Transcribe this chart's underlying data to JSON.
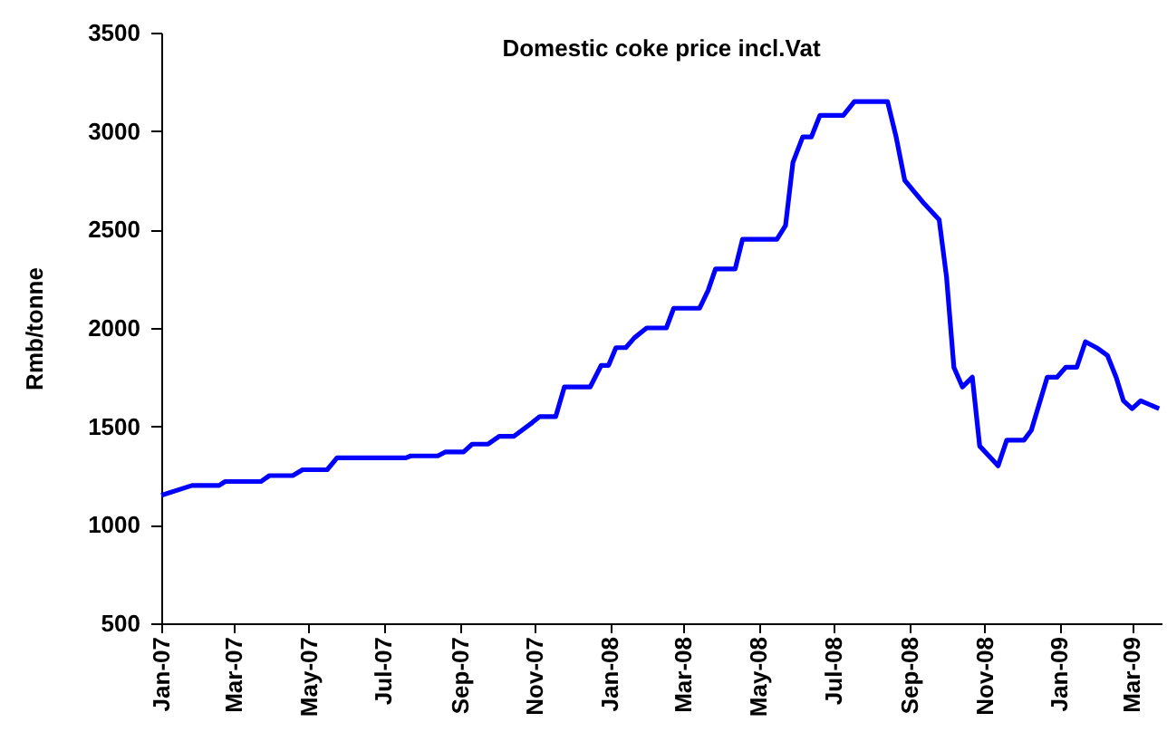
{
  "chart_data": {
    "type": "line",
    "title": "Domestic coke price incl.Vat",
    "ylabel": "Rmb/tonne",
    "x": [
      "2007-01-01",
      "2007-01-26",
      "2007-02-17",
      "2007-02-22",
      "2007-03-23",
      "2007-03-30",
      "2007-04-18",
      "2007-04-26",
      "2007-05-16",
      "2007-05-24",
      "2007-07-19",
      "2007-07-23",
      "2007-08-14",
      "2007-08-20",
      "2007-09-04",
      "2007-09-11",
      "2007-09-24",
      "2007-10-03",
      "2007-10-15",
      "2007-10-30",
      "2007-11-05",
      "2007-11-18",
      "2007-11-25",
      "2007-12-16",
      "2007-12-25",
      "2007-12-31",
      "2008-01-06",
      "2008-01-14",
      "2008-01-21",
      "2008-01-31",
      "2008-02-16",
      "2008-02-22",
      "2008-03-14",
      "2008-03-21",
      "2008-03-27",
      "2008-04-12",
      "2008-04-18",
      "2008-05-16",
      "2008-05-23",
      "2008-05-29",
      "2008-06-06",
      "2008-06-13",
      "2008-06-20",
      "2008-07-09",
      "2008-07-18",
      "2008-08-14",
      "2008-08-21",
      "2008-08-28",
      "2008-09-05",
      "2008-09-13",
      "2008-09-25",
      "2008-10-01",
      "2008-10-07",
      "2008-10-14",
      "2008-10-22",
      "2008-10-28",
      "2008-11-12",
      "2008-11-19",
      "2008-12-03",
      "2008-12-09",
      "2008-12-22",
      "2008-12-30",
      "2009-01-06",
      "2009-01-15",
      "2009-01-22",
      "2009-01-31",
      "2009-02-09",
      "2009-02-16",
      "2009-02-22",
      "2009-03-01",
      "2009-03-08",
      "2009-03-23"
    ],
    "series": [
      {
        "color": "#0000ff",
        "values": [
          1150,
          1200,
          1200,
          1220,
          1220,
          1250,
          1250,
          1280,
          1280,
          1340,
          1340,
          1350,
          1350,
          1370,
          1370,
          1410,
          1410,
          1450,
          1450,
          1520,
          1550,
          1550,
          1700,
          1700,
          1810,
          1810,
          1900,
          1900,
          1950,
          2000,
          2000,
          2100,
          2100,
          2190,
          2300,
          2300,
          2450,
          2450,
          2520,
          2840,
          2970,
          2970,
          3080,
          3080,
          3150,
          3150,
          2970,
          2750,
          2690,
          2630,
          2550,
          2260,
          1800,
          1700,
          1750,
          1400,
          1300,
          1430,
          1430,
          1480,
          1750,
          1750,
          1800,
          1800,
          1930,
          1900,
          1860,
          1750,
          1630,
          1590,
          1630,
          1590
        ]
      }
    ],
    "xlim": [
      "2007-01-01",
      "2009-03-25"
    ],
    "xticks": [
      {
        "value": "2007-01-01",
        "label": "Jan-07"
      },
      {
        "value": "2007-03-01",
        "label": "Mar-07"
      },
      {
        "value": "2007-05-01",
        "label": "May-07"
      },
      {
        "value": "2007-07-01",
        "label": "Jul-07"
      },
      {
        "value": "2007-09-01",
        "label": "Sep-07"
      },
      {
        "value": "2007-11-01",
        "label": "Nov-07"
      },
      {
        "value": "2008-01-01",
        "label": "Jan-08"
      },
      {
        "value": "2008-03-01",
        "label": "Mar-08"
      },
      {
        "value": "2008-05-01",
        "label": "May-08"
      },
      {
        "value": "2008-07-01",
        "label": "Jul-08"
      },
      {
        "value": "2008-09-01",
        "label": "Sep-08"
      },
      {
        "value": "2008-11-01",
        "label": "Nov-08"
      },
      {
        "value": "2009-01-01",
        "label": "Jan-09"
      },
      {
        "value": "2009-03-01",
        "label": "Mar-09"
      }
    ],
    "ylim": [
      500,
      3500
    ],
    "yticks": [
      500,
      1000,
      1500,
      2000,
      2500,
      3000,
      3500
    ],
    "grid": false,
    "legend": false,
    "marker": "none",
    "line_style": "solid"
  }
}
